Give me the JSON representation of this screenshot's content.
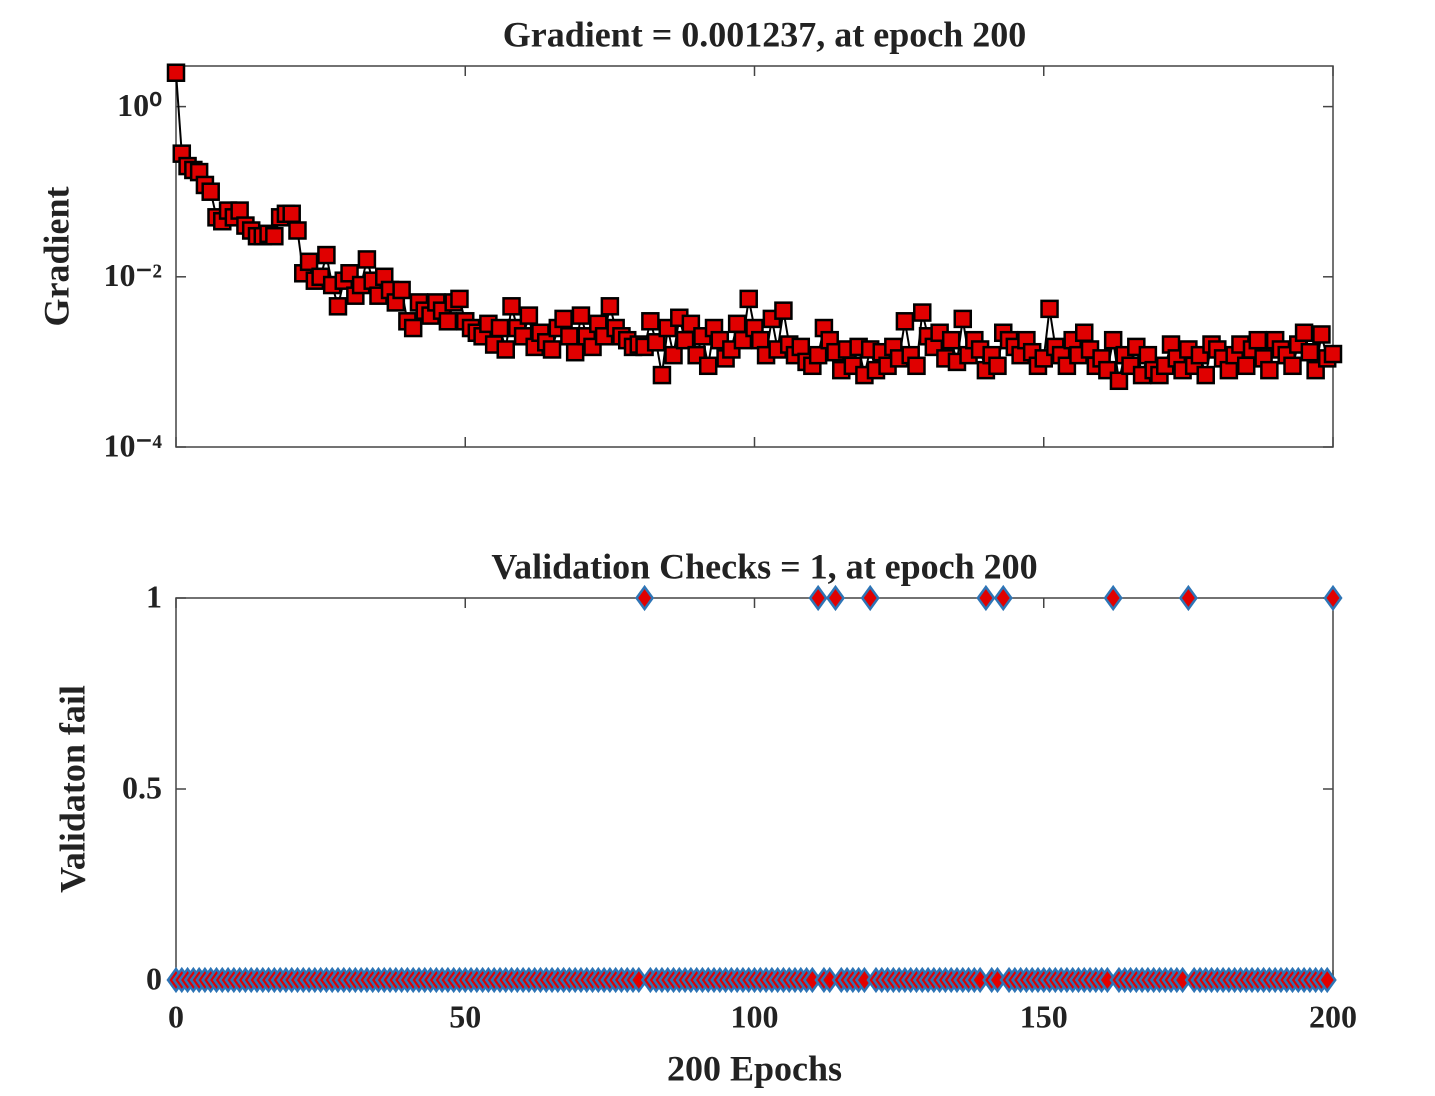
{
  "chart_data": [
    {
      "type": "line",
      "title": "Gradient = 0.001237, at epoch 200",
      "ylabel": "Gradient",
      "log_y": true,
      "ylim": [
        0.0001,
        3
      ],
      "yticks": [
        {
          "value": 0.0001,
          "label": "10⁻⁴"
        },
        {
          "value": 0.01,
          "label": "10⁻²"
        },
        {
          "value": 1,
          "label": "10⁰"
        }
      ],
      "xlim": [
        0,
        200
      ],
      "xticks": [
        0,
        50,
        100,
        150,
        200
      ],
      "xtick_labels": false,
      "color": "#000000",
      "marker": "square",
      "marker_fill": "#e00000",
      "marker_edge": "#000000",
      "x": [
        0,
        1,
        2,
        3,
        4,
        5,
        6,
        7,
        8,
        9,
        10,
        11,
        12,
        13,
        14,
        15,
        16,
        17,
        18,
        19,
        20,
        21,
        22,
        23,
        24,
        25,
        26,
        27,
        28,
        29,
        30,
        31,
        32,
        33,
        34,
        35,
        36,
        37,
        38,
        39,
        40,
        41,
        42,
        43,
        44,
        45,
        46,
        47,
        48,
        49,
        50,
        51,
        52,
        53,
        54,
        55,
        56,
        57,
        58,
        59,
        60,
        61,
        62,
        63,
        64,
        65,
        66,
        67,
        68,
        69,
        70,
        71,
        72,
        73,
        74,
        75,
        76,
        77,
        78,
        79,
        80,
        81,
        82,
        83,
        84,
        85,
        86,
        87,
        88,
        89,
        90,
        91,
        92,
        93,
        94,
        95,
        96,
        97,
        98,
        99,
        100,
        101,
        102,
        103,
        104,
        105,
        106,
        107,
        108,
        109,
        110,
        111,
        112,
        113,
        114,
        115,
        116,
        117,
        118,
        119,
        120,
        121,
        122,
        123,
        124,
        125,
        126,
        127,
        128,
        129,
        130,
        131,
        132,
        133,
        134,
        135,
        136,
        137,
        138,
        139,
        140,
        141,
        142,
        143,
        144,
        145,
        146,
        147,
        148,
        149,
        150,
        151,
        152,
        153,
        154,
        155,
        156,
        157,
        158,
        159,
        160,
        161,
        162,
        163,
        164,
        165,
        166,
        167,
        168,
        169,
        170,
        171,
        172,
        173,
        174,
        175,
        176,
        177,
        178,
        179,
        180,
        181,
        182,
        183,
        184,
        185,
        186,
        187,
        188,
        189,
        190,
        191,
        192,
        193,
        194,
        195,
        196,
        197,
        198,
        199,
        200
      ],
      "values": [
        2.5,
        0.28,
        0.2,
        0.18,
        0.17,
        0.12,
        0.1,
        0.05,
        0.045,
        0.06,
        0.05,
        0.06,
        0.04,
        0.035,
        0.03,
        0.03,
        0.032,
        0.03,
        0.05,
        0.055,
        0.055,
        0.035,
        0.011,
        0.015,
        0.009,
        0.01,
        0.018,
        0.008,
        0.0045,
        0.009,
        0.011,
        0.006,
        0.008,
        0.016,
        0.009,
        0.006,
        0.01,
        0.007,
        0.005,
        0.007,
        0.003,
        0.0025,
        0.005,
        0.004,
        0.0035,
        0.005,
        0.004,
        0.003,
        0.005,
        0.0055,
        0.003,
        0.0025,
        0.0022,
        0.002,
        0.0028,
        0.0016,
        0.0025,
        0.0014,
        0.0045,
        0.0025,
        0.002,
        0.0035,
        0.0015,
        0.0022,
        0.0017,
        0.0014,
        0.0025,
        0.0032,
        0.002,
        0.0013,
        0.0035,
        0.002,
        0.0015,
        0.0028,
        0.002,
        0.0045,
        0.0025,
        0.002,
        0.0018,
        0.0015,
        0.0016,
        0.0015,
        0.003,
        0.0017,
        0.0007,
        0.0025,
        0.0012,
        0.0033,
        0.0018,
        0.0028,
        0.0012,
        0.002,
        0.0009,
        0.0025,
        0.0018,
        0.0011,
        0.0014,
        0.0028,
        0.0018,
        0.0055,
        0.0025,
        0.0018,
        0.0012,
        0.0032,
        0.0014,
        0.004,
        0.0016,
        0.0012,
        0.0015,
        0.001,
        0.0009,
        0.0012,
        0.0025,
        0.0018,
        0.0013,
        0.0008,
        0.0014,
        0.0009,
        0.0015,
        0.0007,
        0.0014,
        0.0008,
        0.0013,
        0.0009,
        0.0015,
        0.0011,
        0.003,
        0.0012,
        0.0009,
        0.0038,
        0.002,
        0.0015,
        0.0022,
        0.0011,
        0.0018,
        0.001,
        0.0032,
        0.0012,
        0.0018,
        0.0014,
        0.0008,
        0.0012,
        0.0009,
        0.0022,
        0.0018,
        0.0015,
        0.0012,
        0.0018,
        0.0013,
        0.0009,
        0.0011,
        0.0042,
        0.0015,
        0.0012,
        0.0009,
        0.0018,
        0.0012,
        0.0022,
        0.0014,
        0.0009,
        0.0011,
        0.0008,
        0.0018,
        0.0006,
        0.0012,
        0.0009,
        0.0015,
        0.0007,
        0.0012,
        0.0008,
        0.0007,
        0.0009,
        0.0016,
        0.0011,
        0.0008,
        0.0014,
        0.0009,
        0.0012,
        0.0007,
        0.0016,
        0.0014,
        0.0011,
        0.0008,
        0.0012,
        0.0016,
        0.0009,
        0.0014,
        0.0018,
        0.0011,
        0.0008,
        0.0018,
        0.0014,
        0.0012,
        0.0009,
        0.0016,
        0.0022,
        0.0013,
        0.0008,
        0.0021,
        0.0011,
        0.001237
      ]
    },
    {
      "type": "scatter",
      "title": "Validation Checks = 1, at epoch 200",
      "ylabel": "Validaton fail",
      "xlabel": "200 Epochs",
      "log_y": false,
      "ylim": [
        0,
        1
      ],
      "yticks": [
        0,
        0.5,
        1
      ],
      "xlim": [
        0,
        200
      ],
      "xticks": [
        0,
        50,
        100,
        150,
        200
      ],
      "xtick_labels": true,
      "marker": "diamond",
      "marker_fill": "#e00000",
      "marker_edge": "#2e75b6",
      "x": [
        0,
        1,
        2,
        3,
        4,
        5,
        6,
        7,
        8,
        9,
        10,
        11,
        12,
        13,
        14,
        15,
        16,
        17,
        18,
        19,
        20,
        21,
        22,
        23,
        24,
        25,
        26,
        27,
        28,
        29,
        30,
        31,
        32,
        33,
        34,
        35,
        36,
        37,
        38,
        39,
        40,
        41,
        42,
        43,
        44,
        45,
        46,
        47,
        48,
        49,
        50,
        51,
        52,
        53,
        54,
        55,
        56,
        57,
        58,
        59,
        60,
        61,
        62,
        63,
        64,
        65,
        66,
        67,
        68,
        69,
        70,
        71,
        72,
        73,
        74,
        75,
        76,
        77,
        78,
        79,
        80,
        81,
        82,
        83,
        84,
        85,
        86,
        87,
        88,
        89,
        90,
        91,
        92,
        93,
        94,
        95,
        96,
        97,
        98,
        99,
        100,
        101,
        102,
        103,
        104,
        105,
        106,
        107,
        108,
        109,
        110,
        111,
        112,
        113,
        114,
        115,
        116,
        117,
        118,
        119,
        120,
        121,
        122,
        123,
        124,
        125,
        126,
        127,
        128,
        129,
        130,
        131,
        132,
        133,
        134,
        135,
        136,
        137,
        138,
        139,
        140,
        141,
        142,
        143,
        144,
        145,
        146,
        147,
        148,
        149,
        150,
        151,
        152,
        153,
        154,
        155,
        156,
        157,
        158,
        159,
        160,
        161,
        162,
        163,
        164,
        165,
        166,
        167,
        168,
        169,
        170,
        171,
        172,
        173,
        174,
        175,
        176,
        177,
        178,
        179,
        180,
        181,
        182,
        183,
        184,
        185,
        186,
        187,
        188,
        189,
        190,
        191,
        192,
        193,
        194,
        195,
        196,
        197,
        198,
        199,
        200
      ],
      "values": [
        0,
        0,
        0,
        0,
        0,
        0,
        0,
        0,
        0,
        0,
        0,
        0,
        0,
        0,
        0,
        0,
        0,
        0,
        0,
        0,
        0,
        0,
        0,
        0,
        0,
        0,
        0,
        0,
        0,
        0,
        0,
        0,
        0,
        0,
        0,
        0,
        0,
        0,
        0,
        0,
        0,
        0,
        0,
        0,
        0,
        0,
        0,
        0,
        0,
        0,
        0,
        0,
        0,
        0,
        0,
        0,
        0,
        0,
        0,
        0,
        0,
        0,
        0,
        0,
        0,
        0,
        0,
        0,
        0,
        0,
        0,
        0,
        0,
        0,
        0,
        0,
        0,
        0,
        0,
        0,
        0,
        1,
        0,
        0,
        0,
        0,
        0,
        0,
        0,
        0,
        0,
        0,
        0,
        0,
        0,
        0,
        0,
        0,
        0,
        0,
        0,
        0,
        0,
        0,
        0,
        0,
        0,
        0,
        0,
        0,
        0,
        1,
        0,
        0,
        1,
        0,
        0,
        0,
        0,
        0,
        1,
        0,
        0,
        0,
        0,
        0,
        0,
        0,
        0,
        0,
        0,
        0,
        0,
        0,
        0,
        0,
        0,
        0,
        0,
        0,
        1,
        0,
        0,
        1,
        0,
        0,
        0,
        0,
        0,
        0,
        0,
        0,
        0,
        0,
        0,
        0,
        0,
        0,
        0,
        0,
        0,
        0,
        1,
        0,
        0,
        0,
        0,
        0,
        0,
        0,
        0,
        0,
        0,
        0,
        0,
        1,
        0,
        0,
        0,
        0,
        0,
        0,
        0,
        0,
        0,
        0,
        0,
        0,
        0,
        0,
        0,
        0,
        0,
        0,
        0,
        0,
        0,
        0,
        0,
        0,
        1
      ]
    }
  ]
}
